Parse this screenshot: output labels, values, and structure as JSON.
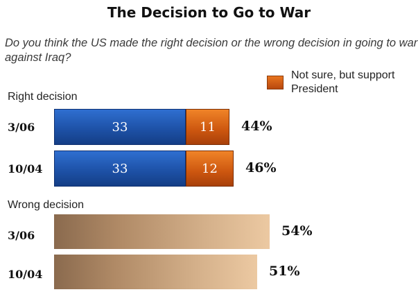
{
  "chart_data": {
    "type": "bar",
    "title": "The Decision to Go to War",
    "question": "Do you think the US made the right decision or the wrong decision in going to war against Iraq?",
    "legend": {
      "label": "Not sure, but support President",
      "color": "#d9621a"
    },
    "colors": {
      "right": "#1e52a8",
      "unsure": "#d9621a",
      "wrong": "#d4b08a"
    },
    "groups": [
      {
        "label": "Right decision",
        "rows": [
          {
            "category": "3/06",
            "segments": [
              33,
              11
            ],
            "total": 44,
            "total_label": "44%"
          },
          {
            "category": "10/04",
            "segments": [
              33,
              12
            ],
            "total": 46,
            "total_label": "46%"
          }
        ]
      },
      {
        "label": "Wrong decision",
        "rows": [
          {
            "category": "3/06",
            "segments": [
              54
            ],
            "total": 54,
            "total_label": "54%"
          },
          {
            "category": "10/04",
            "segments": [
              51
            ],
            "total": 51,
            "total_label": "51%"
          }
        ]
      }
    ]
  }
}
